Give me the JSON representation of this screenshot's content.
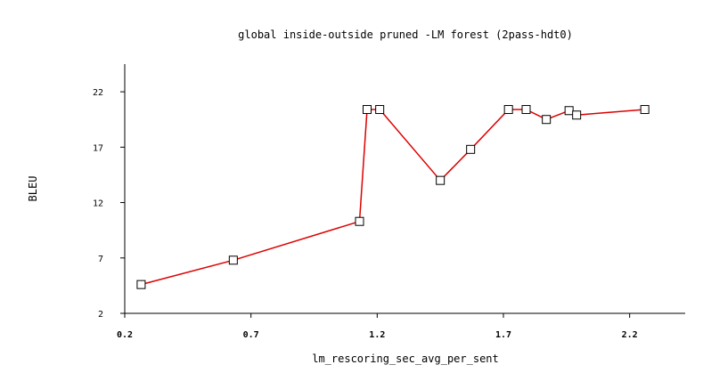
{
  "chart_data": {
    "type": "line",
    "title": "global inside-outside pruned -LM forest (2pass-hdt0)",
    "xlabel": "lm_rescoring_sec_avg_per_sent",
    "ylabel": "BLEU",
    "xlim": [
      0.2,
      2.42
    ],
    "ylim": [
      2,
      24.5
    ],
    "x_ticks": [
      0.2,
      0.7,
      1.2,
      1.7,
      2.2
    ],
    "x_tick_labels": [
      "0.2",
      "0.7",
      "1.2",
      "1.7",
      "2.2"
    ],
    "y_ticks": [
      2,
      7,
      12,
      17,
      22
    ],
    "y_tick_labels": [
      "2",
      "7",
      "12",
      "17",
      "22"
    ],
    "grid": false,
    "colors": {
      "line": "#dd0000",
      "marker_fill": "#ffffff",
      "marker_stroke": "#000000",
      "axis": "#000000"
    },
    "marker": "square",
    "series": [
      {
        "x": [
          0.265,
          0.63,
          1.13,
          1.16,
          1.21,
          1.45,
          1.57,
          1.72,
          1.79,
          1.87,
          1.96,
          1.99,
          2.26
        ],
        "y": [
          4.6,
          6.8,
          10.3,
          20.4,
          20.4,
          14.0,
          16.8,
          20.4,
          20.4,
          19.5,
          20.3,
          19.9,
          20.4
        ]
      }
    ]
  }
}
